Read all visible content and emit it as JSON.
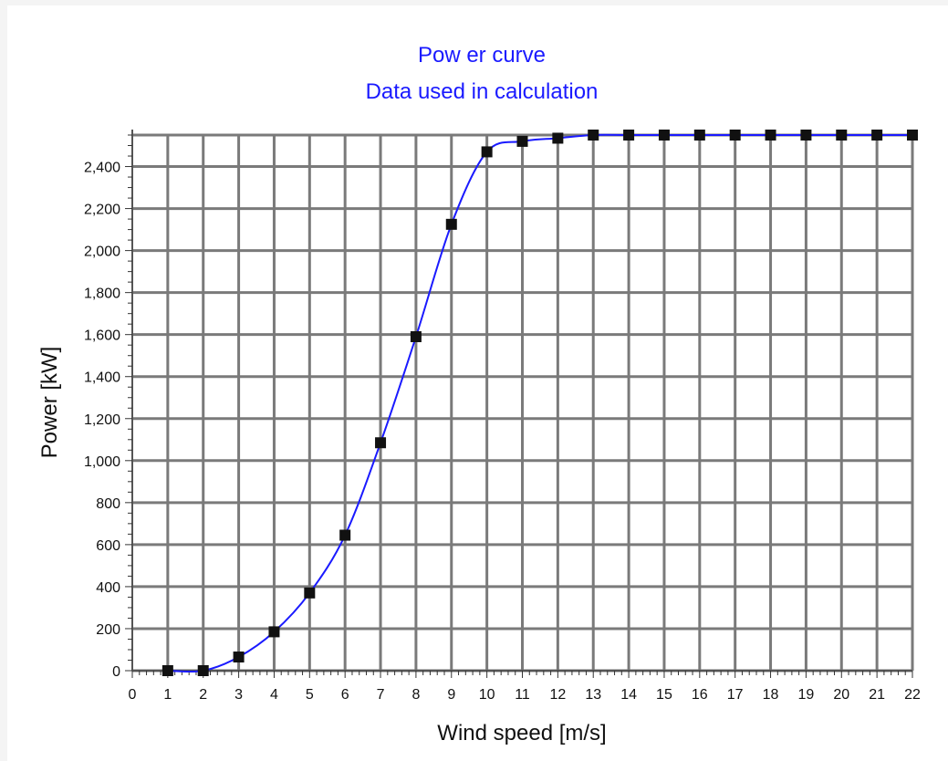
{
  "chart_data": {
    "type": "line",
    "title": "Pow er curve",
    "subtitle": "Data used in calculation",
    "xlabel": "Wind speed [m/s]",
    "ylabel": "Power [kW]",
    "xlim": [
      0,
      22
    ],
    "ylim": [
      0,
      2550
    ],
    "x_ticks": [
      0,
      1,
      2,
      3,
      4,
      5,
      6,
      7,
      8,
      9,
      10,
      11,
      12,
      13,
      14,
      15,
      16,
      17,
      18,
      19,
      20,
      21,
      22
    ],
    "y_ticks": [
      0,
      200,
      400,
      600,
      800,
      1000,
      1200,
      1400,
      1600,
      1800,
      2000,
      2200,
      2400
    ],
    "y_tick_labels": [
      "0",
      "200",
      "400",
      "600",
      "800",
      "1,000",
      "1,200",
      "1,400",
      "1,600",
      "1,800",
      "2,000",
      "2,200",
      "2,400"
    ],
    "grid": true,
    "colors": {
      "line": "#1a1aff",
      "marker": "#111111",
      "grid": "#7a7a7a",
      "title": "#1a1aff"
    },
    "series": [
      {
        "x": [
          1,
          2,
          3,
          4,
          5,
          6,
          7,
          8,
          9,
          10,
          11,
          12,
          13,
          14,
          15,
          16,
          17,
          18,
          19,
          20,
          21,
          22
        ],
        "values": [
          0,
          0,
          65,
          185,
          370,
          645,
          1085,
          1590,
          2125,
          2470,
          2520,
          2535,
          2550,
          2550,
          2550,
          2550,
          2550,
          2550,
          2550,
          2550,
          2550,
          2550
        ]
      }
    ]
  }
}
